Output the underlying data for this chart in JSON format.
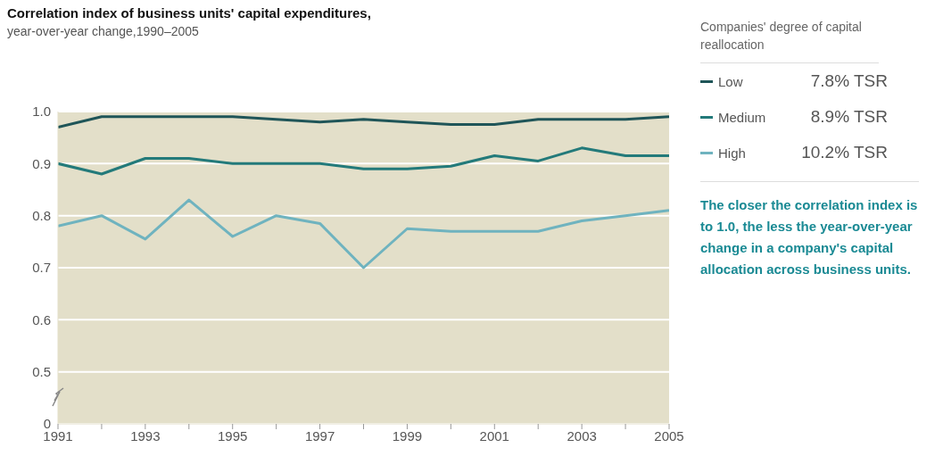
{
  "chart_data": {
    "type": "line",
    "title": "Correlation index of business units' capital expenditures,",
    "subtitle": "year-over-year change,1990–2005",
    "legend_title": "Companies' degree of capital reallocation",
    "x": [
      1991,
      1992,
      1993,
      1994,
      1995,
      1996,
      1997,
      1998,
      1999,
      2000,
      2001,
      2002,
      2003,
      2004,
      2005
    ],
    "series": [
      {
        "name": "Low",
        "color": "#1f5558",
        "values": [
          0.97,
          0.99,
          0.99,
          0.99,
          0.99,
          0.985,
          0.98,
          0.985,
          0.98,
          0.975,
          0.975,
          0.985,
          0.985,
          0.985,
          0.99
        ]
      },
      {
        "name": "Medium",
        "color": "#237a7a",
        "values": [
          0.9,
          0.88,
          0.91,
          0.91,
          0.9,
          0.9,
          0.9,
          0.89,
          0.89,
          0.895,
          0.915,
          0.905,
          0.93,
          0.915,
          0.915
        ]
      },
      {
        "name": "High",
        "color": "#6fb3bf",
        "values": [
          0.78,
          0.8,
          0.755,
          0.83,
          0.76,
          0.8,
          0.785,
          0.7,
          0.775,
          0.77,
          0.77,
          0.77,
          0.79,
          0.8,
          0.81
        ]
      }
    ],
    "xlim": [
      1991,
      2005
    ],
    "xticks": [
      1991,
      {
        "value": 1992,
        "label": null
      },
      1993,
      {
        "value": 1994,
        "label": null
      },
      1995,
      {
        "value": 1996,
        "label": null
      },
      1997,
      {
        "value": 1998,
        "label": null
      },
      1999,
      {
        "value": 2000,
        "label": null
      },
      2001,
      {
        "value": 2002,
        "label": null
      },
      2003,
      {
        "value": 2004,
        "label": null
      },
      2005
    ],
    "ylim": [
      0.4,
      1.0
    ],
    "yticks": [
      {
        "value": 0.4,
        "label": "0"
      },
      0.5,
      0.6,
      0.7,
      0.8,
      0.9,
      {
        "value": 1.0,
        "label": "1.0"
      }
    ],
    "grid": "y",
    "legend": "right",
    "marker": "none",
    "line_style": "solid",
    "annotations": [
      "7.8% TSR",
      "8.9% TSR",
      "10.2% TSR",
      "The closer the correlation index is to 1.0, the less the year-over-year change in a company's capital allocation across business units."
    ]
  }
}
